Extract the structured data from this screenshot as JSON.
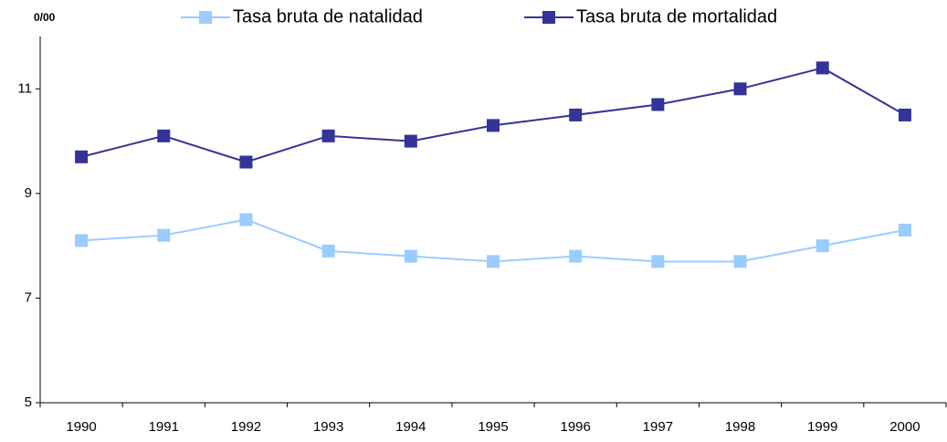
{
  "chart_data": {
    "type": "line",
    "y_label": "0/00",
    "categories": [
      "1990",
      "1991",
      "1992",
      "1993",
      "1994",
      "1995",
      "1996",
      "1997",
      "1998",
      "1999",
      "2000"
    ],
    "series": [
      {
        "name": "Tasa bruta de natalidad",
        "color": "#99ccff",
        "values": [
          8.1,
          8.2,
          8.5,
          7.9,
          7.8,
          7.7,
          7.8,
          7.7,
          7.7,
          8.0,
          8.3
        ]
      },
      {
        "name": "Tasa bruta de mortalidad",
        "color": "#333399",
        "values": [
          9.7,
          10.1,
          9.6,
          10.1,
          10.0,
          10.3,
          10.5,
          10.7,
          11.0,
          11.4,
          10.5
        ]
      }
    ],
    "ylim": [
      5,
      12
    ],
    "yticks": [
      5,
      7,
      9,
      11
    ],
    "grid": false,
    "legend": "top"
  }
}
